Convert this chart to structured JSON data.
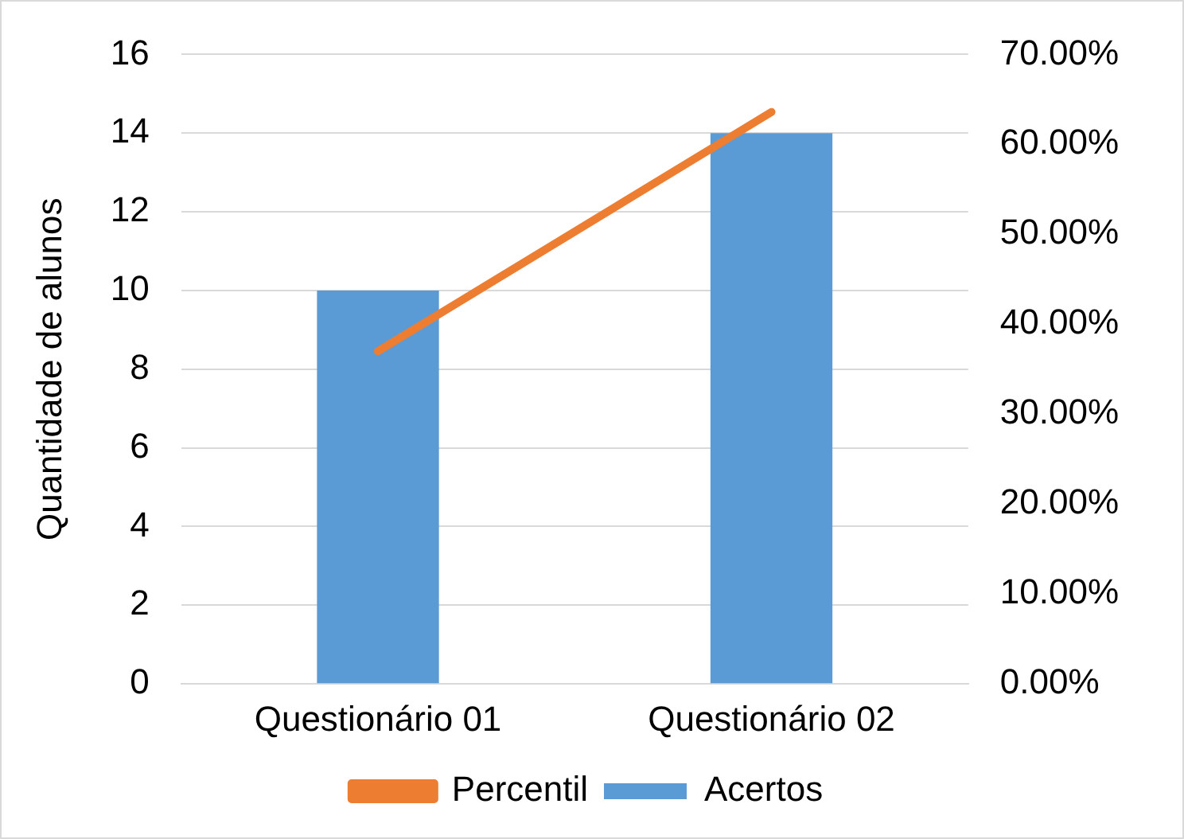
{
  "chart_data": {
    "type": "bar",
    "ylabel": "Quantidade de alunos",
    "categories": [
      "Questionário 01",
      "Questionário 02"
    ],
    "series": [
      {
        "name": "Acertos",
        "color": "#5b9bd5",
        "values": [
          10,
          14
        ]
      },
      {
        "name": "Percentil",
        "type": "line",
        "axis": "y2",
        "color": "#ed7d31",
        "values": [
          0.37,
          0.636
        ]
      }
    ],
    "ylim": [
      0,
      16
    ],
    "yticks": [
      0,
      2,
      4,
      6,
      8,
      10,
      12,
      14,
      16
    ],
    "y2lim": [
      0,
      0.7
    ],
    "y2ticks": [
      {
        "value": 0,
        "label": "0.00%"
      },
      {
        "value": 0.1,
        "label": "10.00%"
      },
      {
        "value": 0.2,
        "label": "20.00%"
      },
      {
        "value": 0.3,
        "label": "30.00%"
      },
      {
        "value": 0.4,
        "label": "40.00%"
      },
      {
        "value": 0.5,
        "label": "50.00%"
      },
      {
        "value": 0.6,
        "label": "60.00%"
      },
      {
        "value": 0.7,
        "label": "70.00%"
      }
    ],
    "grid": "y",
    "legend": "bottom",
    "marker": "none"
  }
}
